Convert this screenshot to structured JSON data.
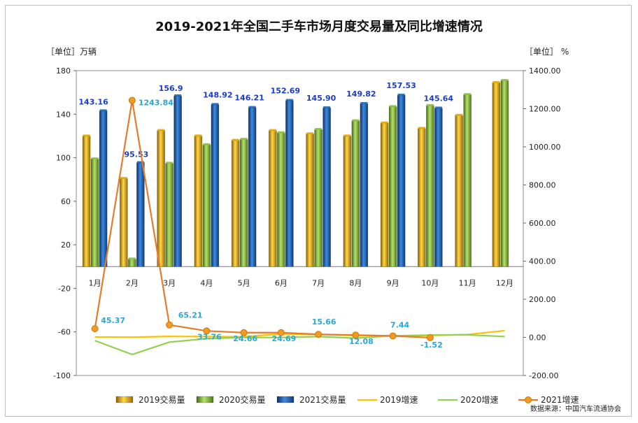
{
  "chart_data": {
    "type": "bar",
    "title": "2019-2021年全国二手车市场月度交易量及同比增速情况",
    "ylabel_left": "［单位］万辆",
    "ylabel_right": "［单位］ %",
    "source": "数据来源：中国汽车流通协会",
    "ylim_left": [
      -100,
      180
    ],
    "yticks_left": [
      "180",
      "140",
      "100",
      "60",
      "20",
      "-20",
      "-60",
      "-100"
    ],
    "ylim_right": [
      -200,
      1400
    ],
    "yticks_right": [
      "1400.00",
      "1200.00",
      "1000.00",
      "800.00",
      "600.00",
      "400.00",
      "200.00",
      "0.00",
      "-200.00"
    ],
    "categories": [
      "1月",
      "2月",
      "3月",
      "4月",
      "5月",
      "6月",
      "7月",
      "8月",
      "9月",
      "10月",
      "11月",
      "12月"
    ],
    "series": [
      {
        "name": "2019交易量",
        "kind": "bar",
        "color": "#e0a800",
        "values": [
          120,
          81,
          125,
          120,
          116,
          125,
          122,
          120,
          132,
          127,
          139,
          169
        ]
      },
      {
        "name": "2020交易量",
        "kind": "bar",
        "color": "#8cbf3f",
        "values": [
          99,
          7,
          95,
          112,
          117,
          123,
          126,
          134,
          147,
          148,
          158,
          171
        ]
      },
      {
        "name": "2021交易量",
        "kind": "bar",
        "color": "#1f66b4",
        "values": [
          143.16,
          95.53,
          156.9,
          148.92,
          146.21,
          152.69,
          145.9,
          149.82,
          157.53,
          145.64,
          null,
          null
        ]
      },
      {
        "name": "2019增速",
        "kind": "line",
        "color": "#ffc000",
        "values": [
          2,
          1,
          5,
          4,
          3,
          18,
          15,
          10,
          8,
          10,
          15,
          35
        ]
      },
      {
        "name": "2020增速",
        "kind": "line",
        "color": "#92d050",
        "values": [
          -17,
          -90,
          -25,
          -7,
          0,
          -1,
          4,
          -4,
          8,
          12,
          13,
          4
        ]
      },
      {
        "name": "2021增速",
        "kind": "line",
        "color": "#e57c2c",
        "values": [
          45.37,
          1243.84,
          65.21,
          33.76,
          24.66,
          24.69,
          15.66,
          12.08,
          7.44,
          -1.52,
          null,
          null
        ]
      }
    ],
    "bar_labels_2021": [
      "143.16",
      "95.53",
      "156.9",
      "148.92",
      "146.21",
      "152.69",
      "145.90",
      "149.82",
      "157.53",
      "145.64"
    ],
    "growth_labels_2021": [
      "45.37",
      "1243.84",
      "65.21",
      "33.76",
      "24.66",
      "24.69",
      "15.66",
      "12.08",
      "7.44",
      "-1.52"
    ],
    "legend": [
      "2019交易量",
      "2020交易量",
      "2021交易量",
      "2019增速",
      "2020增速",
      "2021增速"
    ],
    "legend_position": "bottom"
  }
}
